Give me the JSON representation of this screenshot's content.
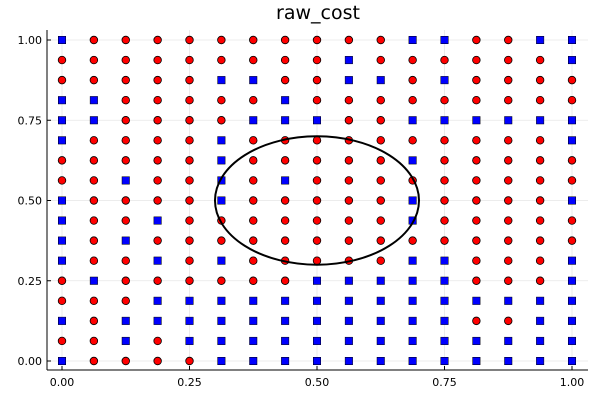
{
  "chart_data": {
    "type": "scatter",
    "title": "raw_cost",
    "xlabel": "",
    "ylabel": "",
    "xlim": [
      0,
      1
    ],
    "ylim": [
      0,
      1
    ],
    "x_ticks": [
      0.0,
      0.25,
      0.5,
      0.75,
      1.0
    ],
    "y_ticks": [
      0.0,
      0.25,
      0.5,
      0.75,
      1.0
    ],
    "x_tick_labels": [
      "0.00",
      "0.25",
      "0.50",
      "0.75",
      "1.00"
    ],
    "y_tick_labels": [
      "0.00",
      "0.25",
      "0.50",
      "0.75",
      "1.00"
    ],
    "grid": true,
    "legend": "none",
    "grid_points": 17,
    "markers": {
      "circle": {
        "shape": "circle",
        "color": "#ff0000"
      },
      "square": {
        "shape": "square",
        "color": "#0000ff"
      }
    },
    "marker_rows_top_to_bottom": [
      "SCCCCCCCCCCSSCCSS",
      "CCCCCCCCCSCCCCCCS",
      "CCCCCSSCCSSCSCCCC",
      "SSCCCCCSCCCCCCCCC",
      "SSCCCCSSSCCSSSSSS",
      "SCCCCSCCCCCCCCCCS",
      "CCCCCSCCCCCSCCCCC",
      "CCSCCSCSCCCCCCCCC",
      "SCCCCSCCCCCSCCCCS",
      "SCCSCCCCCCCSCCCCC",
      "SCSCCCCCCCCCCCCCC",
      "SCCSCSCCCCCSSCCCS",
      "CSCCCCCCSSSSSCCCS",
      "CCCSSSSSSSSSSSSSS",
      "SCSSSSSSSSSSSCCSS",
      "CCSCSSSSSSSSSSSSS",
      "SCCCCSSSSSSSSSSSS"
    ],
    "ellipse": {
      "center": [
        0.5,
        0.5
      ],
      "rx": 0.2,
      "ry": 0.2,
      "color": "#000000"
    }
  }
}
